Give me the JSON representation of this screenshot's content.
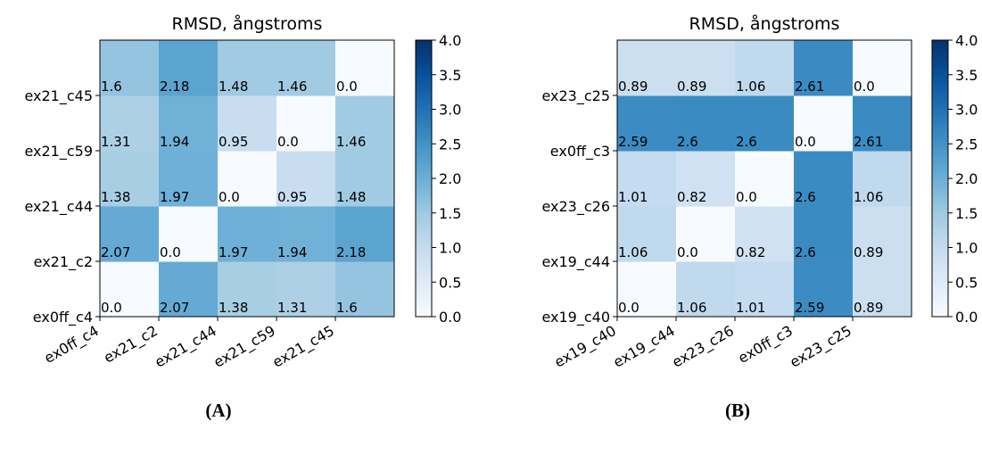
{
  "chart_data": [
    {
      "type": "heatmap",
      "title": "RMSD, ångstroms",
      "panel_label": "(A)",
      "x_labels": [
        "ex0ff_c4",
        "ex21_c2",
        "ex21_c44",
        "ex21_c59",
        "ex21_c45"
      ],
      "y_labels": [
        "ex0ff_c4",
        "ex21_c2",
        "ex21_c44",
        "ex21_c59",
        "ex21_c45"
      ],
      "values": [
        [
          0.0,
          2.07,
          1.38,
          1.31,
          1.6
        ],
        [
          2.07,
          0.0,
          1.97,
          1.94,
          2.18
        ],
        [
          1.38,
          1.97,
          0.0,
          0.95,
          1.48
        ],
        [
          1.31,
          1.94,
          0.95,
          0.0,
          1.46
        ],
        [
          1.6,
          2.18,
          1.48,
          1.46,
          0.0
        ]
      ],
      "cell_labels": [
        [
          "0.0",
          "2.07",
          "1.38",
          "1.31",
          "1.6"
        ],
        [
          "2.07",
          "0.0",
          "1.97",
          "1.94",
          "2.18"
        ],
        [
          "1.38",
          "1.97",
          "0.0",
          "0.95",
          "1.48"
        ],
        [
          "1.31",
          "1.94",
          "0.95",
          "0.0",
          "1.46"
        ],
        [
          "1.6",
          "2.18",
          "1.48",
          "1.46",
          "0.0"
        ]
      ],
      "colorbar": {
        "range": [
          0.0,
          4.0
        ],
        "ticks": [
          "0.0",
          "0.5",
          "1.0",
          "1.5",
          "2.0",
          "2.5",
          "3.0",
          "3.5",
          "4.0"
        ],
        "colormap": "Blues"
      }
    },
    {
      "type": "heatmap",
      "title": "RMSD, ångstroms",
      "panel_label": "(B)",
      "x_labels": [
        "ex19_c40",
        "ex19_c44",
        "ex23_c26",
        "ex0ff_c3",
        "ex23_c25"
      ],
      "y_labels": [
        "ex19_c40",
        "ex19_c44",
        "ex23_c26",
        "ex0ff_c3",
        "ex23_c25"
      ],
      "values": [
        [
          0.0,
          1.06,
          1.01,
          2.59,
          0.89
        ],
        [
          1.06,
          0.0,
          0.82,
          2.6,
          0.89
        ],
        [
          1.01,
          0.82,
          0.0,
          2.6,
          1.06
        ],
        [
          2.59,
          2.6,
          2.6,
          0.0,
          2.61
        ],
        [
          0.89,
          0.89,
          1.06,
          2.61,
          0.0
        ]
      ],
      "cell_labels": [
        [
          "0.0",
          "1.06",
          "1.01",
          "2.59",
          "0.89"
        ],
        [
          "1.06",
          "0.0",
          "0.82",
          "2.6",
          "0.89"
        ],
        [
          "1.01",
          "0.82",
          "0.0",
          "2.6",
          "1.06"
        ],
        [
          "2.59",
          "2.6",
          "2.6",
          "0.0",
          "2.61"
        ],
        [
          "0.89",
          "0.89",
          "1.06",
          "2.61",
          "0.0"
        ]
      ],
      "colorbar": {
        "range": [
          0.0,
          4.0
        ],
        "ticks": [
          "0.0",
          "0.5",
          "1.0",
          "1.5",
          "2.0",
          "2.5",
          "3.0",
          "3.5",
          "4.0"
        ],
        "colormap": "Blues"
      }
    }
  ]
}
